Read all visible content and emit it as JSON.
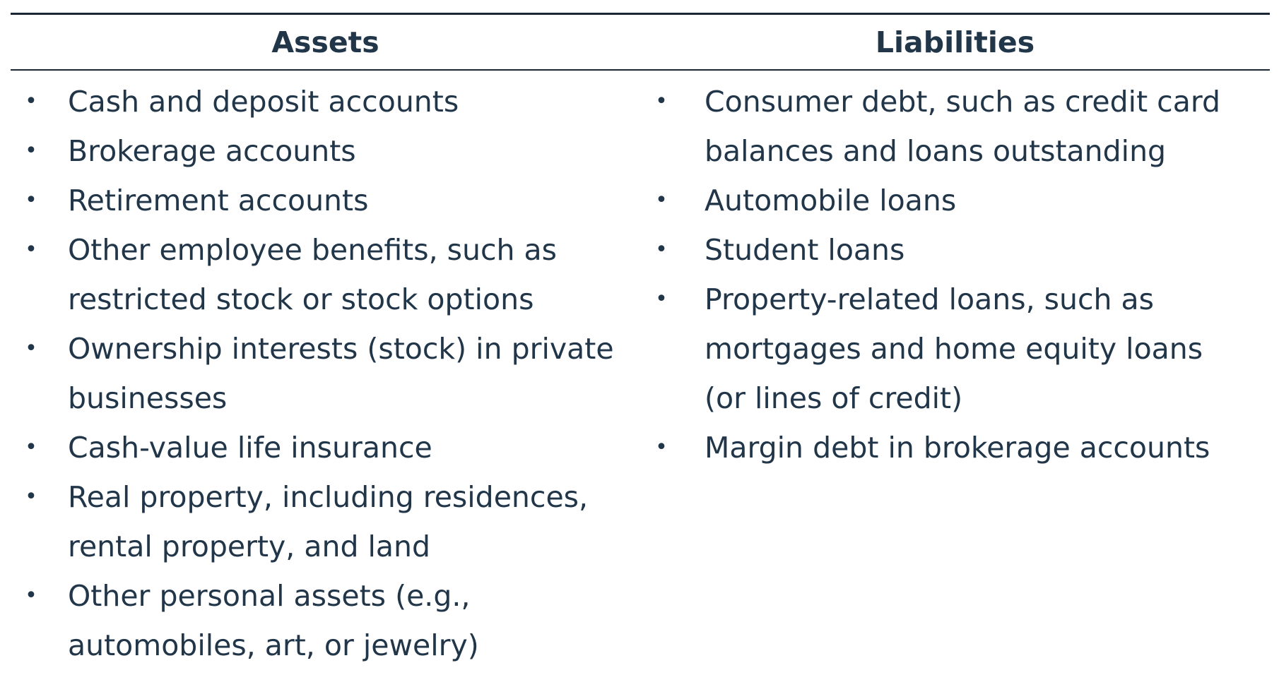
{
  "table": {
    "headers": [
      "Assets",
      "Liabilities"
    ],
    "assets": [
      "Cash and deposit accounts",
      "Brokerage accounts",
      "Retirement accounts",
      "Other employee benefits, such as restricted stock or stock options",
      "Ownership interests (stock) in private businesses",
      "Cash-value life insurance",
      "Real property, including residences, rental property, and land",
      "Other personal assets (e.g., automobiles, art, or jewelry)"
    ],
    "liabilities": [
      "Consumer debt, such as credit card balances and loans outstanding",
      "Automobile loans",
      "Student loans",
      "Property-related loans, such as mortgages and home equity loans (or lines of credit)",
      "Margin debt in brokerage accounts"
    ],
    "bullet_glyph": "•"
  }
}
